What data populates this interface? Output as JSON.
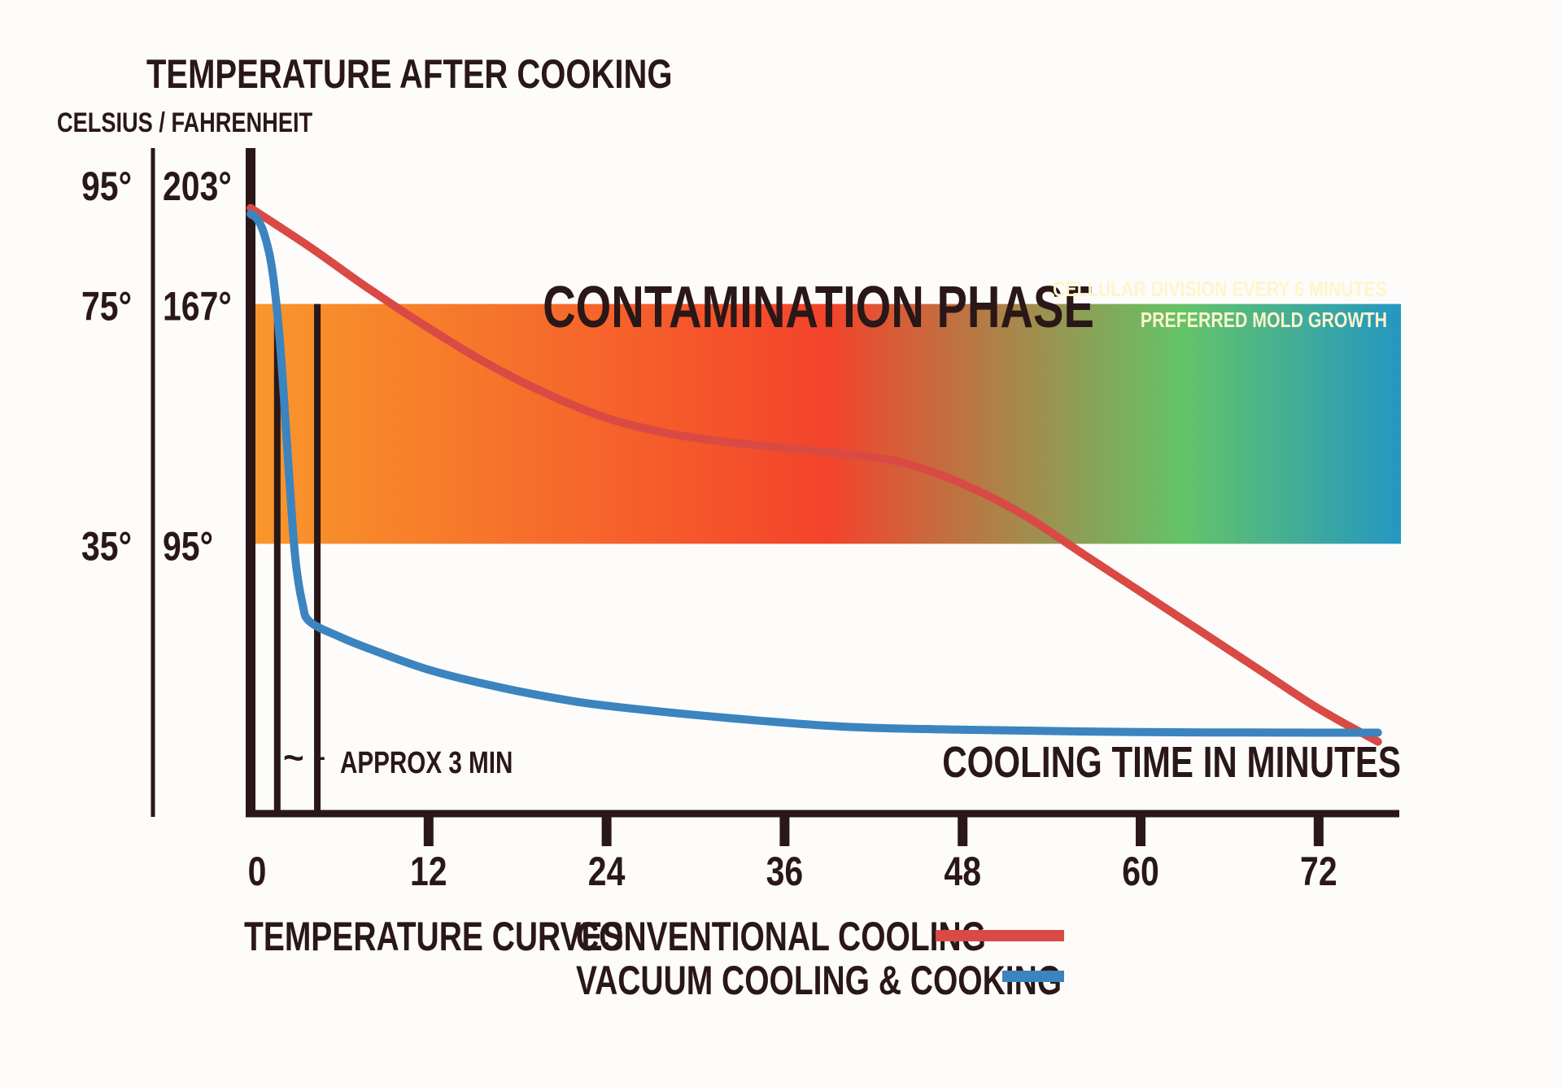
{
  "chart_data": {
    "type": "line",
    "title": "TEMPERATURE AFTER COOKING",
    "ylabel": "CELSIUS / FAHRENHEIT",
    "xlabel": "COOLING TIME IN MINUTES",
    "x_ticks": [
      0,
      12,
      24,
      36,
      48,
      60,
      72
    ],
    "x_tick_labels": [
      "0",
      "12",
      "24",
      "36",
      "48",
      "60",
      "72"
    ],
    "y_ticks_celsius": [
      "95°",
      "75°",
      "35°"
    ],
    "y_ticks_fahrenheit": [
      "203°",
      "167°",
      "95°"
    ],
    "y_tick_values": [
      95,
      75,
      35
    ],
    "xlim": [
      0,
      77
    ],
    "ylim": [
      -10,
      101
    ],
    "band": {
      "label": "CONTAMINATION PHASE",
      "note_lines": [
        "CELLULAR DIVISION EVERY 6 MINUTES",
        "PREFERRED MOLD GROWTH"
      ],
      "y_range": [
        35,
        75
      ],
      "gradient_colors": [
        "#f8972b",
        "#f4432b",
        "#63c468",
        "#2497c2"
      ]
    },
    "annotation": {
      "text": "APPROX 3 MIN",
      "markers": [
        0,
        1.8,
        4.5
      ]
    },
    "legend_title": "TEMPERATURE CURVES",
    "series": [
      {
        "name": "CONVENTIONAL COOLING",
        "color": "#d94a45",
        "x": [
          0,
          4,
          8,
          12,
          16,
          20,
          24,
          28,
          32,
          36,
          40,
          44,
          48,
          52,
          56,
          60,
          64,
          68,
          72,
          76
        ],
        "y": [
          91,
          84.5,
          77.5,
          71,
          65,
          60,
          56,
          53.5,
          52,
          51,
          50,
          48.5,
          45,
          40,
          33.5,
          27,
          20.5,
          14,
          7.5,
          2
        ]
      },
      {
        "name": "VACUUM COOLING & COOKING",
        "color": "#3b84c0",
        "x": [
          0,
          0.5,
          1,
          1.5,
          2,
          2.5,
          3,
          3.5,
          4,
          6,
          8,
          12,
          16,
          20,
          24,
          32,
          40,
          48,
          60,
          72,
          76
        ],
        "y": [
          90,
          89,
          86,
          80,
          68,
          50,
          33,
          25,
          22,
          19.5,
          17.5,
          14,
          11.5,
          9.5,
          8,
          6,
          4.5,
          4,
          3.6,
          3.5,
          3.5
        ]
      }
    ]
  }
}
